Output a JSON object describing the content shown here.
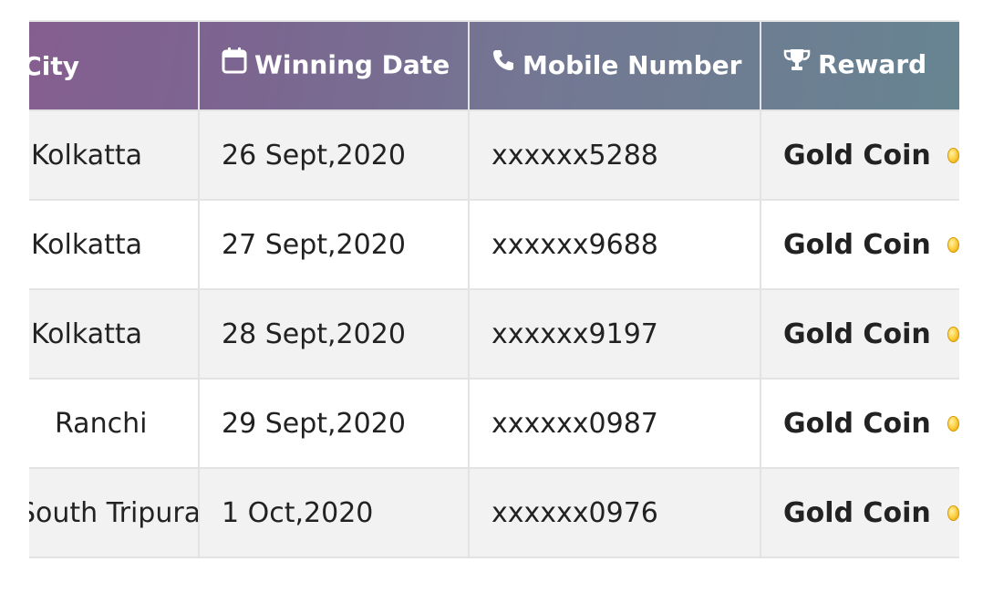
{
  "table": {
    "headers": {
      "city": "City",
      "winning_date": "Winning Date",
      "mobile_number": "Mobile Number",
      "reward": "Reward"
    },
    "header_icons": {
      "winning_date": "calendar-icon",
      "mobile_number": "phone-icon",
      "reward": "trophy-icon"
    },
    "rows": [
      {
        "city": "Kolkatta",
        "date": "26 Sept,2020",
        "mobile": "xxxxxx5288",
        "reward": "Gold Coin"
      },
      {
        "city": "Kolkatta",
        "date": "27 Sept,2020",
        "mobile": "xxxxxx9688",
        "reward": "Gold Coin"
      },
      {
        "city": "Kolkatta",
        "date": "28 Sept,2020",
        "mobile": "xxxxxx9197",
        "reward": "Gold Coin"
      },
      {
        "city": "Ranchi",
        "date": "29 Sept,2020",
        "mobile": "xxxxxx0987",
        "reward": "Gold Coin"
      },
      {
        "city": "South Tripura",
        "date": "1 Oct,2020",
        "mobile": "xxxxxx0976",
        "reward": "Gold Coin"
      }
    ]
  },
  "colors": {
    "header_gradient_start": "#8a5a8e",
    "header_gradient_end": "#678491",
    "row_stripe": "#f2f2f2",
    "border": "#e3e3e3",
    "coin": "#ffd24a"
  }
}
